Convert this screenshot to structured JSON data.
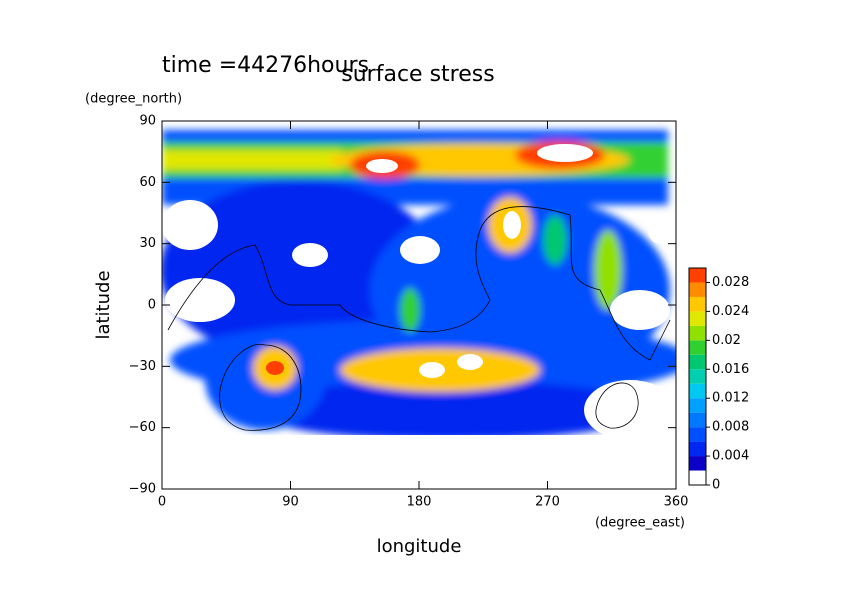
{
  "chart_data": {
    "type": "contour",
    "title": "surface stress",
    "subtitle": "time =44276hours",
    "x_label": "longitude",
    "x_unit": "(degree_east)",
    "y_label": "latitude",
    "y_unit": "(degree_north)",
    "xlim": [
      0,
      360
    ],
    "xticks": [
      0,
      90,
      180,
      270,
      360
    ],
    "ylim": [
      -90,
      90
    ],
    "yticks": [
      {
        "value": -90,
        "label": "−90"
      },
      {
        "value": -60,
        "label": "−60"
      },
      {
        "value": -30,
        "label": "−30"
      },
      0,
      30,
      60,
      90
    ],
    "colorbar": {
      "lim": [
        0,
        0.03
      ],
      "ticks": [
        0,
        0.004,
        0.008,
        0.012,
        0.016,
        0.02,
        0.024,
        0.028
      ],
      "colors": [
        "#ffffff",
        "#0a00c8",
        "#0028f0",
        "#0050ff",
        "#0078ff",
        "#00a0ff",
        "#00c8f0",
        "#00d0b0",
        "#00c870",
        "#30d030",
        "#90e000",
        "#e0e800",
        "#ffc800",
        "#ff8c00",
        "#ff4000"
      ]
    }
  }
}
